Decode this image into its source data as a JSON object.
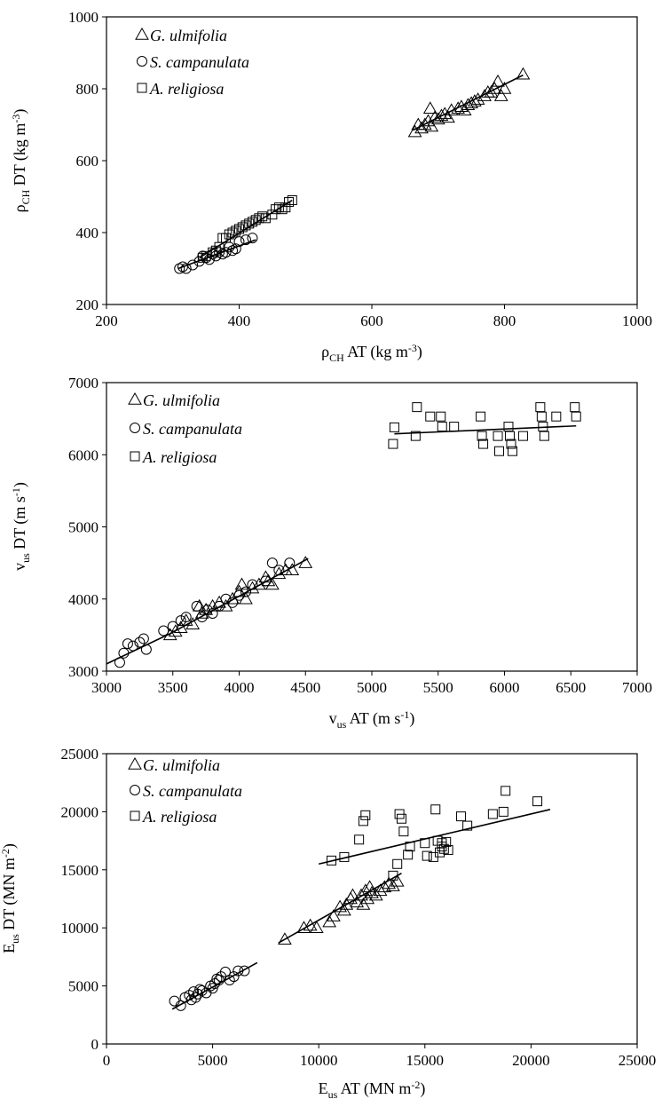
{
  "chart_data": [
    {
      "type": "scatter",
      "title": "",
      "xlabel": {
        "base": "ρ",
        "sub": "CH",
        "rest": " AT  (kg m",
        "sup": "-3",
        "end": ")"
      },
      "ylabel": {
        "base": "ρ",
        "sub": "CH",
        "rest": " DT  (kg m",
        "sup": "-3",
        "end": ")"
      },
      "xlim": [
        200,
        1000
      ],
      "ylim": [
        200,
        1000
      ],
      "xticks": [
        200,
        400,
        600,
        800,
        1000
      ],
      "yticks": [
        200,
        400,
        600,
        800,
        1000
      ],
      "xtick_labels": [
        "200",
        "400",
        "600",
        "800",
        "1000"
      ],
      "ytick_labels": [
        "200",
        "400",
        "600",
        "800",
        "1000"
      ],
      "legend": [
        {
          "marker": "triangle",
          "prefix": "",
          "label": "G. ulmifolia"
        },
        {
          "marker": "circle",
          "prefix": "",
          "label": "S. campanulata"
        },
        {
          "marker": "square",
          "prefix": "",
          "label": "A. religiosa"
        }
      ],
      "series": [
        {
          "name": "G. ulmifolia",
          "marker": "triangle",
          "x": [
            665,
            670,
            675,
            680,
            685,
            690,
            695,
            700,
            705,
            710,
            715,
            720,
            730,
            735,
            740,
            745,
            750,
            755,
            760,
            770,
            775,
            780,
            785,
            790,
            795,
            800,
            828,
            688
          ],
          "y": [
            680,
            700,
            690,
            700,
            710,
            695,
            720,
            715,
            725,
            730,
            720,
            740,
            745,
            750,
            740,
            755,
            760,
            765,
            770,
            780,
            790,
            790,
            800,
            820,
            780,
            800,
            840,
            745
          ],
          "fit": [
            [
              662,
              685
            ],
            [
              828,
              838
            ]
          ]
        },
        {
          "name": "S. campanulata",
          "marker": "circle",
          "x": [
            310,
            315,
            320,
            330,
            340,
            345,
            350,
            355,
            360,
            365,
            370,
            375,
            380,
            385,
            390,
            395,
            400,
            410,
            420
          ],
          "y": [
            300,
            305,
            300,
            310,
            320,
            335,
            330,
            325,
            340,
            335,
            345,
            340,
            345,
            360,
            350,
            355,
            375,
            380,
            385
          ],
          "fit": [
            [
              308,
              300
            ],
            [
              425,
              380
            ]
          ]
        },
        {
          "name": "A. religiosa",
          "marker": "square",
          "x": [
            345,
            350,
            360,
            365,
            370,
            375,
            380,
            385,
            390,
            395,
            400,
            405,
            410,
            415,
            420,
            425,
            430,
            435,
            440,
            450,
            455,
            460,
            465,
            470,
            475,
            480
          ],
          "y": [
            330,
            335,
            345,
            350,
            360,
            385,
            385,
            395,
            400,
            405,
            410,
            415,
            420,
            425,
            430,
            435,
            440,
            445,
            440,
            450,
            465,
            470,
            465,
            470,
            485,
            490
          ],
          "fit": [
            [
              340,
              330
            ],
            [
              480,
              490
            ]
          ]
        }
      ]
    },
    {
      "type": "scatter",
      "title": "",
      "xlabel": {
        "base": "v",
        "sub": "us",
        "rest": " AT  (m s",
        "sup": "-1",
        "end": ")"
      },
      "ylabel": {
        "base": "v",
        "sub": "us",
        "rest": " DT  (m s",
        "sup": "-1",
        "end": ")"
      },
      "xlim": [
        3000,
        7000
      ],
      "ylim": [
        3000,
        7000
      ],
      "xticks": [
        3000,
        3500,
        4000,
        4500,
        5000,
        5500,
        6000,
        6500,
        7000
      ],
      "yticks": [
        3000,
        4000,
        5000,
        6000,
        7000
      ],
      "xtick_labels": [
        "3000",
        "3500",
        "4000",
        "4500",
        "5000",
        "5500",
        "6000",
        "6500",
        "7000"
      ],
      "ytick_labels": [
        "3000",
        "4000",
        "5000",
        "6000",
        "7000"
      ],
      "legend": [
        {
          "marker": "triangle",
          "prefix": "",
          "label": "G. ulmifolia"
        },
        {
          "marker": "circle",
          "prefix": "",
          "label": "S. campanulata"
        },
        {
          "marker": "square",
          "prefix": "",
          "label": "A. religiosa"
        }
      ],
      "series": [
        {
          "name": "G. ulmifolia",
          "marker": "triangle",
          "x": [
            3480,
            3520,
            3560,
            3600,
            3650,
            3700,
            3720,
            3750,
            3800,
            3850,
            3900,
            3950,
            4000,
            4020,
            4050,
            4100,
            4150,
            4200,
            4220,
            4250,
            4300,
            4350,
            4400,
            4500
          ],
          "y": [
            3500,
            3550,
            3600,
            3700,
            3650,
            3900,
            3800,
            3850,
            3900,
            3950,
            3900,
            4000,
            4100,
            4200,
            4000,
            4150,
            4200,
            4300,
            4250,
            4200,
            4350,
            4400,
            4400,
            4500
          ],
          "fit": [
            [
              3480,
              3520
            ],
            [
              4520,
              4560
            ]
          ]
        },
        {
          "name": "S. campanulata",
          "marker": "circle",
          "x": [
            3100,
            3130,
            3160,
            3200,
            3250,
            3280,
            3300,
            3430,
            3500,
            3560,
            3600,
            3680,
            3720,
            3760,
            3800,
            3850,
            3900,
            3950,
            4000,
            4050,
            4100,
            4200,
            4250,
            4300,
            4380
          ],
          "y": [
            3120,
            3250,
            3380,
            3350,
            3400,
            3450,
            3300,
            3560,
            3620,
            3700,
            3750,
            3900,
            3750,
            3850,
            3800,
            3900,
            4000,
            3950,
            4050,
            4100,
            4200,
            4250,
            4500,
            4400,
            4500
          ],
          "fit": [
            [
              3000,
              3100
            ],
            [
              3480,
              3520
            ]
          ]
        },
        {
          "name": "A. religiosa",
          "marker": "square",
          "x": [
            5160,
            5170,
            5330,
            5340,
            5440,
            5520,
            5530,
            5620,
            5820,
            5830,
            5840,
            5950,
            5960,
            6030,
            6040,
            6050,
            6060,
            6140,
            6270,
            6280,
            6290,
            6300,
            6390,
            6530,
            6540
          ],
          "y": [
            6150,
            6380,
            6260,
            6660,
            6530,
            6530,
            6390,
            6390,
            6530,
            6260,
            6150,
            6260,
            6050,
            6390,
            6260,
            6150,
            6050,
            6260,
            6660,
            6530,
            6390,
            6260,
            6530,
            6660,
            6530
          ],
          "fit": [
            [
              5170,
              6290
            ],
            [
              6540,
              6400
            ]
          ]
        }
      ]
    },
    {
      "type": "scatter",
      "title": "",
      "xlabel": {
        "base": "E",
        "sub": "us",
        "rest": " AT  (MN m",
        "sup": "-2",
        "end": ")"
      },
      "ylabel": {
        "base": "E",
        "sub": "us",
        "rest": " DT  (MN m",
        "sup": "-2",
        "end": ")"
      },
      "xlim": [
        0,
        25000
      ],
      "ylim": [
        0,
        25000
      ],
      "xticks": [
        0,
        5000,
        10000,
        15000,
        20000,
        25000
      ],
      "yticks": [
        0,
        5000,
        10000,
        15000,
        20000,
        25000
      ],
      "xtick_labels": [
        "0",
        "5000",
        "10000",
        "15000",
        "20000",
        "25000"
      ],
      "ytick_labels": [
        "0",
        "5000",
        "10000",
        "15000",
        "20000",
        "25000"
      ],
      "legend": [
        {
          "marker": "triangle",
          "prefix": " ",
          "label": "G. ulmifolia"
        },
        {
          "marker": "circle",
          "prefix": "  ",
          "label": "S. campanulata"
        },
        {
          "marker": "square",
          "prefix": "  ",
          "label": "A. religiosa"
        }
      ],
      "series": [
        {
          "name": "G. ulmifolia",
          "marker": "triangle",
          "x": [
            8400,
            9300,
            9600,
            9900,
            10500,
            10700,
            11000,
            11300,
            11500,
            11800,
            12000,
            12200,
            12300,
            12500,
            12700,
            12900,
            13100,
            13300,
            13500,
            13700,
            11200,
            11600,
            12100,
            12400
          ],
          "y": [
            9000,
            10000,
            10200,
            10000,
            10500,
            11000,
            11800,
            12000,
            12500,
            12200,
            12800,
            13200,
            12500,
            13000,
            12800,
            13200,
            13500,
            13800,
            13600,
            14000,
            11500,
            12800,
            12000,
            13500
          ],
          "fit": [
            [
              8100,
              8700
            ],
            [
              13900,
              14700
            ]
          ]
        },
        {
          "name": "S. campanulata",
          "marker": "circle",
          "x": [
            3200,
            3500,
            3700,
            3900,
            4000,
            4100,
            4300,
            4500,
            4700,
            4900,
            5000,
            5100,
            5200,
            5400,
            5600,
            5800,
            6000,
            6200,
            6500,
            4200,
            4400,
            5300
          ],
          "y": [
            3700,
            3300,
            4000,
            4200,
            3800,
            4500,
            4300,
            4600,
            4400,
            5000,
            4800,
            5200,
            5600,
            5800,
            6200,
            5500,
            5800,
            6300,
            6300,
            4000,
            4700,
            5500
          ],
          "fit": [
            [
              3100,
              3000
            ],
            [
              7100,
              7000
            ]
          ]
        },
        {
          "name": "A. religiosa",
          "marker": "square",
          "x": [
            10600,
            11200,
            11900,
            12100,
            12200,
            13500,
            13700,
            13800,
            13900,
            14000,
            14200,
            14300,
            15000,
            15100,
            15500,
            15600,
            15700,
            15800,
            15900,
            16000,
            16100,
            16700,
            17000,
            18200,
            18700,
            18800,
            20300,
            15400,
            15800
          ],
          "y": [
            15800,
            16100,
            17600,
            19200,
            19700,
            14500,
            15500,
            19800,
            19400,
            18300,
            16300,
            17000,
            17300,
            16200,
            20200,
            17500,
            16500,
            17300,
            16800,
            17400,
            16700,
            19600,
            18800,
            19800,
            20000,
            21800,
            20900,
            16100,
            17000
          ],
          "fit": [
            [
              10000,
              15500
            ],
            [
              20900,
              20200
            ]
          ]
        }
      ]
    }
  ]
}
